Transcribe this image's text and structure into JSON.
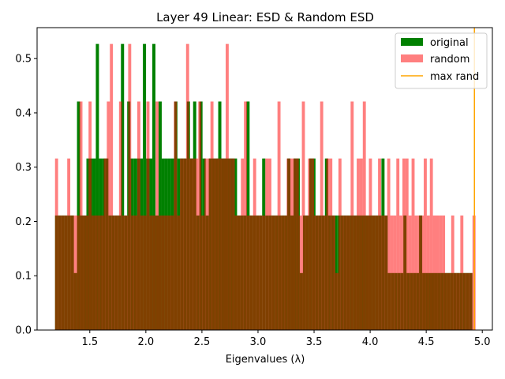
{
  "chart_data": {
    "type": "bar",
    "title": "Layer 49 Linear: ESD & Random ESD",
    "xlabel": "Eigenvalues (λ)",
    "ylabel": "",
    "xlim": [
      1.03,
      5.09
    ],
    "ylim": [
      0,
      0.557
    ],
    "x_ticks": [
      "1.5",
      "2.0",
      "2.5",
      "3.0",
      "3.5",
      "4.0",
      "4.5",
      "5.0"
    ],
    "y_ticks": [
      "0.0",
      "0.1",
      "0.2",
      "0.3",
      "0.4",
      "0.5"
    ],
    "legend_position": "top-right",
    "grid": false,
    "bin_range": [
      1.19,
      4.94
    ],
    "series": [
      {
        "name": "original",
        "kind": "histogram",
        "color": "#008000",
        "alpha": 1.0,
        "values": [
          0.211,
          0.211,
          0.211,
          0.211,
          0.211,
          0.211,
          0.105,
          0.421,
          0.211,
          0.211,
          0.316,
          0.316,
          0.316,
          0.527,
          0.316,
          0.316,
          0.316,
          0.211,
          0.211,
          0.211,
          0.211,
          0.527,
          0.211,
          0.421,
          0.316,
          0.316,
          0.316,
          0.316,
          0.527,
          0.316,
          0.316,
          0.527,
          0.211,
          0.421,
          0.316,
          0.316,
          0.316,
          0.316,
          0.421,
          0.316,
          0.316,
          0.316,
          0.421,
          0.316,
          0.421,
          0.211,
          0.421,
          0.316,
          0.211,
          0.316,
          0.316,
          0.316,
          0.421,
          0.316,
          0.316,
          0.316,
          0.316,
          0.316,
          0.211,
          0.211,
          0.211,
          0.421,
          0.211,
          0.211,
          0.211,
          0.211,
          0.316,
          0.211,
          0.211,
          0.211,
          0.211,
          0.211,
          0.211,
          0.211,
          0.316,
          0.211,
          0.316,
          0.316,
          0.105,
          0.211,
          0.211,
          0.316,
          0.316,
          0.211,
          0.211,
          0.211,
          0.316,
          0.211,
          0.211,
          0.211,
          0.211,
          0.211,
          0.211,
          0.211,
          0.211,
          0.211,
          0.211,
          0.211,
          0.211,
          0.211,
          0.211,
          0.211,
          0.211,
          0.211,
          0.316,
          0.211,
          0.105,
          0.105,
          0.105,
          0.105,
          0.105,
          0.211,
          0.105,
          0.105,
          0.105,
          0.105,
          0.211,
          0.105,
          0.105,
          0.105,
          0.105,
          0.105,
          0.105,
          0.105,
          0.105,
          0.105,
          0.105,
          0.105,
          0.105,
          0.105,
          0.105,
          0.105,
          0.105,
          0.0
        ]
      },
      {
        "name": "random",
        "kind": "histogram",
        "color": "#ff0000",
        "alpha": 0.5,
        "values": [
          0.316,
          0.211,
          0.211,
          0.211,
          0.316,
          0.211,
          0.211,
          0.211,
          0.421,
          0.211,
          0.211,
          0.421,
          0.211,
          0.211,
          0.211,
          0.211,
          0.316,
          0.421,
          0.527,
          0.211,
          0.211,
          0.421,
          0.211,
          0.211,
          0.527,
          0.211,
          0.211,
          0.421,
          0.211,
          0.211,
          0.421,
          0.211,
          0.211,
          0.421,
          0.211,
          0.211,
          0.211,
          0.211,
          0.211,
          0.421,
          0.211,
          0.316,
          0.316,
          0.527,
          0.316,
          0.316,
          0.316,
          0.421,
          0.211,
          0.316,
          0.316,
          0.421,
          0.316,
          0.316,
          0.316,
          0.316,
          0.527,
          0.316,
          0.316,
          0.211,
          0.211,
          0.316,
          0.421,
          0.211,
          0.211,
          0.316,
          0.211,
          0.211,
          0.211,
          0.316,
          0.316,
          0.211,
          0.211,
          0.421,
          0.211,
          0.211,
          0.316,
          0.316,
          0.316,
          0.316,
          0.211,
          0.421,
          0.211,
          0.316,
          0.316,
          0.211,
          0.211,
          0.421,
          0.211,
          0.316,
          0.316,
          0.211,
          0.105,
          0.316,
          0.211,
          0.211,
          0.211,
          0.421,
          0.211,
          0.316,
          0.316,
          0.421,
          0.211,
          0.316,
          0.211,
          0.211,
          0.316,
          0.211,
          0.211,
          0.316,
          0.211,
          0.211,
          0.316,
          0.211,
          0.316,
          0.316,
          0.211,
          0.316,
          0.211,
          0.211,
          0.211,
          0.316,
          0.211,
          0.316,
          0.211,
          0.211,
          0.211,
          0.211,
          0.105,
          0.105,
          0.211,
          0.105,
          0.105,
          0.211,
          0.105,
          0.105,
          0.105,
          0.211
        ]
      },
      {
        "name": "max rand",
        "kind": "vline",
        "color": "#ffa500",
        "x": 4.93
      }
    ]
  }
}
